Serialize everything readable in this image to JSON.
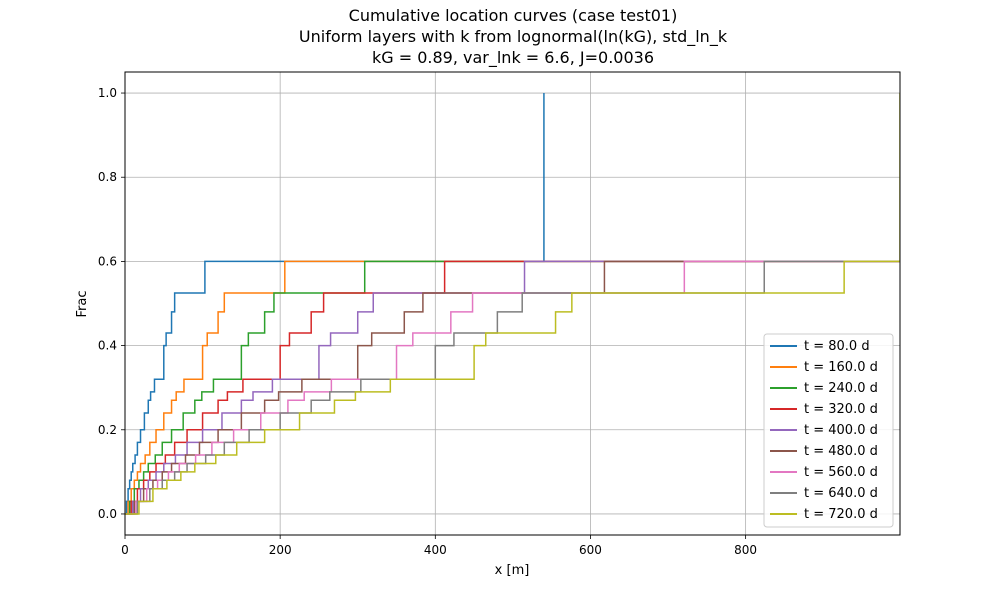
{
  "chart_data": {
    "type": "line",
    "step": true,
    "title": [
      "Cumulative location curves (case test01)",
      "Uniform layers with k from lognormal(ln(kG), std_ln_k",
      "kG = 0.89, var_lnk = 6.6, J=0.0036"
    ],
    "xlabel": "x [m]",
    "ylabel": "Frac",
    "xlim": [
      0,
      999
    ],
    "ylim": [
      -0.05,
      1.05
    ],
    "xticks": [
      0,
      200,
      400,
      600,
      800
    ],
    "yticks": [
      0.0,
      0.2,
      0.4,
      0.6,
      0.8,
      1.0
    ],
    "xtick_labels": [
      "0",
      "200",
      "400",
      "600",
      "800"
    ],
    "ytick_labels": [
      "0.0",
      "0.2",
      "0.4",
      "0.6",
      "0.8",
      "1.0"
    ],
    "grid": true,
    "legend_position": "lower-right",
    "series": [
      {
        "name": "t = 80.0 d",
        "color": "#1f77b4",
        "x": [
          0,
          2,
          2,
          4,
          4,
          6,
          6,
          8,
          8,
          10,
          10,
          13,
          13,
          16,
          16,
          20,
          20,
          25,
          25,
          30,
          30,
          33,
          33,
          38,
          38,
          50,
          50,
          53,
          53,
          60,
          60,
          64,
          64,
          103,
          103,
          540,
          540
        ],
        "y": [
          0,
          0,
          0.03,
          0.03,
          0.06,
          0.06,
          0.08,
          0.08,
          0.1,
          0.1,
          0.12,
          0.12,
          0.14,
          0.14,
          0.17,
          0.17,
          0.2,
          0.2,
          0.24,
          0.24,
          0.27,
          0.27,
          0.29,
          0.29,
          0.32,
          0.32,
          0.4,
          0.4,
          0.43,
          0.43,
          0.48,
          0.48,
          0.525,
          0.525,
          0.6,
          0.6,
          1.0
        ]
      },
      {
        "name": "t = 160.0 d",
        "color": "#ff7f0e",
        "x": [
          0,
          4,
          4,
          8,
          8,
          12,
          12,
          16,
          16,
          20,
          20,
          26,
          26,
          32,
          32,
          40,
          40,
          50,
          50,
          60,
          60,
          66,
          66,
          76,
          76,
          100,
          100,
          106,
          106,
          120,
          120,
          128,
          128,
          206,
          206,
          999
        ],
        "y": [
          0,
          0,
          0.03,
          0.03,
          0.06,
          0.06,
          0.08,
          0.08,
          0.1,
          0.1,
          0.12,
          0.12,
          0.14,
          0.14,
          0.17,
          0.17,
          0.2,
          0.2,
          0.24,
          0.24,
          0.27,
          0.27,
          0.29,
          0.29,
          0.32,
          0.32,
          0.4,
          0.4,
          0.43,
          0.43,
          0.48,
          0.48,
          0.525,
          0.525,
          0.6,
          0.6
        ]
      },
      {
        "name": "t = 240.0 d",
        "color": "#2ca02c",
        "x": [
          0,
          6,
          6,
          12,
          12,
          18,
          18,
          24,
          24,
          30,
          30,
          39,
          39,
          48,
          48,
          60,
          60,
          75,
          75,
          90,
          90,
          99,
          99,
          114,
          114,
          150,
          150,
          159,
          159,
          180,
          180,
          192,
          192,
          309,
          309,
          999
        ],
        "y": [
          0,
          0,
          0.03,
          0.03,
          0.06,
          0.06,
          0.08,
          0.08,
          0.1,
          0.1,
          0.12,
          0.12,
          0.14,
          0.14,
          0.17,
          0.17,
          0.2,
          0.2,
          0.24,
          0.24,
          0.27,
          0.27,
          0.29,
          0.29,
          0.32,
          0.32,
          0.4,
          0.4,
          0.43,
          0.43,
          0.48,
          0.48,
          0.525,
          0.525,
          0.6,
          0.6
        ]
      },
      {
        "name": "t = 320.0 d",
        "color": "#d62728",
        "x": [
          0,
          8,
          8,
          16,
          16,
          24,
          24,
          32,
          32,
          40,
          40,
          52,
          52,
          64,
          64,
          80,
          80,
          100,
          100,
          120,
          120,
          132,
          132,
          152,
          152,
          200,
          200,
          212,
          212,
          240,
          240,
          256,
          256,
          412,
          412,
          999
        ],
        "y": [
          0,
          0,
          0.03,
          0.03,
          0.06,
          0.06,
          0.08,
          0.08,
          0.1,
          0.1,
          0.12,
          0.12,
          0.14,
          0.14,
          0.17,
          0.17,
          0.2,
          0.2,
          0.24,
          0.24,
          0.27,
          0.27,
          0.29,
          0.29,
          0.32,
          0.32,
          0.4,
          0.4,
          0.43,
          0.43,
          0.48,
          0.48,
          0.525,
          0.525,
          0.6,
          0.6
        ]
      },
      {
        "name": "t = 400.0 d",
        "color": "#9467bd",
        "x": [
          0,
          10,
          10,
          20,
          20,
          30,
          30,
          40,
          40,
          50,
          50,
          65,
          65,
          80,
          80,
          100,
          100,
          125,
          125,
          150,
          150,
          165,
          165,
          190,
          190,
          250,
          250,
          265,
          265,
          300,
          300,
          320,
          320,
          515,
          515,
          999
        ],
        "y": [
          0,
          0,
          0.03,
          0.03,
          0.06,
          0.06,
          0.08,
          0.08,
          0.1,
          0.1,
          0.12,
          0.12,
          0.14,
          0.14,
          0.17,
          0.17,
          0.2,
          0.2,
          0.24,
          0.24,
          0.27,
          0.27,
          0.29,
          0.29,
          0.32,
          0.32,
          0.4,
          0.4,
          0.43,
          0.43,
          0.48,
          0.48,
          0.525,
          0.525,
          0.6,
          0.6
        ]
      },
      {
        "name": "t = 480.0 d",
        "color": "#8c564b",
        "x": [
          0,
          12,
          12,
          24,
          24,
          36,
          36,
          48,
          48,
          60,
          60,
          78,
          78,
          96,
          96,
          120,
          120,
          150,
          150,
          180,
          180,
          198,
          198,
          228,
          228,
          300,
          300,
          318,
          318,
          360,
          360,
          384,
          384,
          618,
          618,
          999
        ],
        "y": [
          0,
          0,
          0.03,
          0.03,
          0.06,
          0.06,
          0.08,
          0.08,
          0.1,
          0.1,
          0.12,
          0.12,
          0.14,
          0.14,
          0.17,
          0.17,
          0.2,
          0.2,
          0.24,
          0.24,
          0.27,
          0.27,
          0.29,
          0.29,
          0.32,
          0.32,
          0.4,
          0.4,
          0.43,
          0.43,
          0.48,
          0.48,
          0.525,
          0.525,
          0.6,
          0.6
        ]
      },
      {
        "name": "t = 560.0 d",
        "color": "#e377c2",
        "x": [
          0,
          14,
          14,
          28,
          28,
          42,
          42,
          56,
          56,
          70,
          70,
          91,
          91,
          112,
          112,
          140,
          140,
          175,
          175,
          210,
          210,
          231,
          231,
          266,
          266,
          350,
          350,
          371,
          371,
          420,
          420,
          448,
          448,
          721,
          721,
          999
        ],
        "y": [
          0,
          0,
          0.03,
          0.03,
          0.06,
          0.06,
          0.08,
          0.08,
          0.1,
          0.1,
          0.12,
          0.12,
          0.14,
          0.14,
          0.17,
          0.17,
          0.2,
          0.2,
          0.24,
          0.24,
          0.27,
          0.27,
          0.29,
          0.29,
          0.32,
          0.32,
          0.4,
          0.4,
          0.43,
          0.43,
          0.48,
          0.48,
          0.525,
          0.525,
          0.6,
          0.6
        ]
      },
      {
        "name": "t = 640.0 d",
        "color": "#7f7f7f",
        "x": [
          0,
          16,
          16,
          32,
          32,
          48,
          48,
          64,
          64,
          80,
          80,
          104,
          104,
          128,
          128,
          160,
          160,
          200,
          200,
          240,
          240,
          264,
          264,
          304,
          304,
          400,
          400,
          424,
          424,
          480,
          480,
          512,
          512,
          824,
          824,
          999
        ],
        "y": [
          0,
          0,
          0.03,
          0.03,
          0.06,
          0.06,
          0.08,
          0.08,
          0.1,
          0.1,
          0.12,
          0.12,
          0.14,
          0.14,
          0.17,
          0.17,
          0.2,
          0.2,
          0.24,
          0.24,
          0.27,
          0.27,
          0.29,
          0.29,
          0.32,
          0.32,
          0.4,
          0.4,
          0.43,
          0.43,
          0.48,
          0.48,
          0.525,
          0.525,
          0.6,
          0.6
        ]
      },
      {
        "name": "t = 720.0 d",
        "color": "#bcbd22",
        "x": [
          0,
          18,
          18,
          36,
          36,
          54,
          54,
          72,
          72,
          90,
          90,
          117,
          117,
          144,
          144,
          180,
          180,
          225,
          225,
          270,
          270,
          297,
          297,
          342,
          342,
          450,
          450,
          465,
          465,
          555,
          555,
          576,
          576,
          927,
          927,
          999,
          999
        ],
        "y": [
          0,
          0,
          0.03,
          0.03,
          0.06,
          0.06,
          0.08,
          0.08,
          0.1,
          0.1,
          0.12,
          0.12,
          0.14,
          0.14,
          0.17,
          0.17,
          0.2,
          0.2,
          0.24,
          0.24,
          0.27,
          0.27,
          0.29,
          0.29,
          0.32,
          0.32,
          0.4,
          0.4,
          0.43,
          0.43,
          0.48,
          0.48,
          0.525,
          0.525,
          0.6,
          0.6,
          1.0
        ]
      }
    ]
  }
}
